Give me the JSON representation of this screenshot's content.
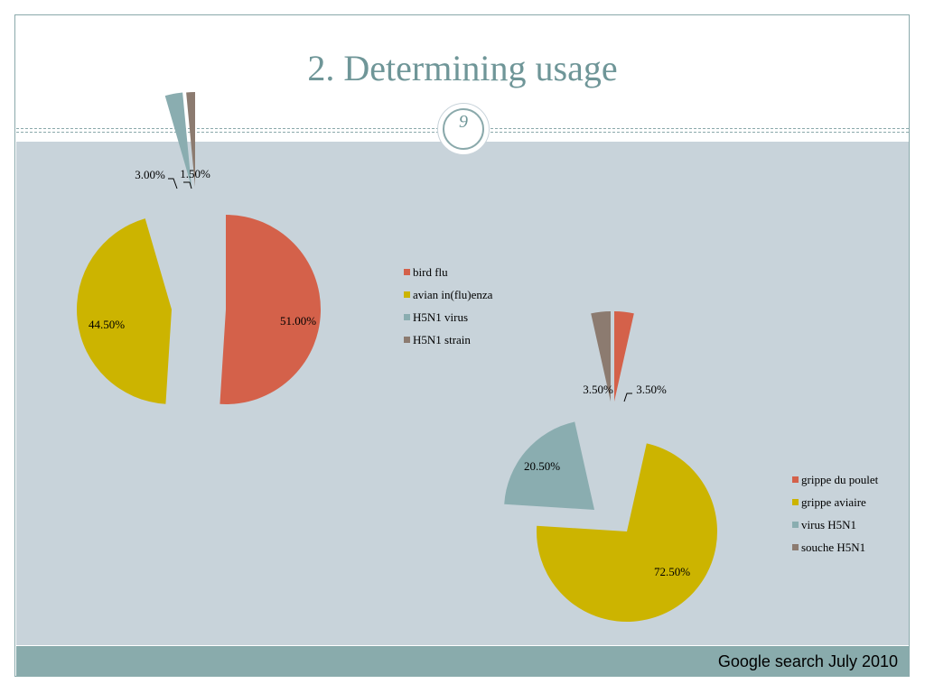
{
  "slide": {
    "title": "2. Determining usage",
    "page_number": "9",
    "footer": "Google search July 2010"
  },
  "colors": {
    "background": "#ffffff",
    "content_bg": "#c8d3da",
    "accent": "#8aa9ab",
    "title": "#6f9698"
  },
  "chart_data": [
    {
      "type": "pie",
      "title": "",
      "exploded": true,
      "categories": [
        "bird flu",
        "avian in(flu)enza",
        "H5N1 virus",
        "H5N1 strain"
      ],
      "values": [
        51.0,
        44.5,
        3.0,
        1.5
      ],
      "data_labels": [
        "51.00%",
        "44.50%",
        "3.00%",
        "1.50%"
      ],
      "colors": [
        "#d4614a",
        "#ccb400",
        "#8aadb0",
        "#8c7b70"
      ],
      "legend_position": "right"
    },
    {
      "type": "pie",
      "title": "",
      "exploded": true,
      "categories": [
        "grippe du poulet",
        "grippe aviaire",
        "virus H5N1",
        "souche H5N1"
      ],
      "values": [
        3.5,
        72.5,
        20.5,
        3.5
      ],
      "data_labels": [
        "3.50%",
        "72.50%",
        "20.50%",
        "3.50%"
      ],
      "colors": [
        "#d4614a",
        "#ccb400",
        "#8aadb0",
        "#8c7b70"
      ],
      "legend_position": "right"
    }
  ]
}
